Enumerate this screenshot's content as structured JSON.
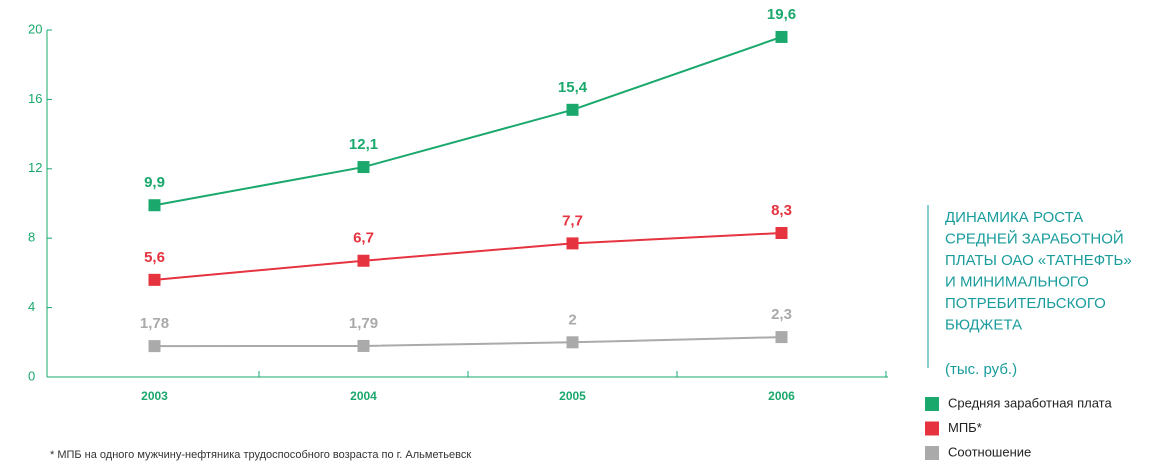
{
  "chart_data": {
    "type": "line",
    "title": [
      "ДИНАМИКА РОСТА",
      "СРЕДНЕЙ ЗАРАБОТНОЙ",
      "ПЛАТЫ ОАО «ТАТНЕФТЬ»",
      "И МИНИМАЛЬНОГО",
      "ПОТРЕБИТЕЛЬСКОГО",
      "БЮДЖЕТА"
    ],
    "subtitle": "(тыс. руб.)",
    "footnote": "* МПБ на одного мужчину-нефтяника трудоспособного возраста по г. Альметьевск",
    "categories": [
      "2003",
      "2004",
      "2005",
      "2006"
    ],
    "series": [
      {
        "name": "Средняя заработная плата",
        "color": "#1aa86c",
        "values": [
          9.9,
          12.1,
          15.4,
          19.6
        ],
        "value_labels": [
          "9,9",
          "12,1",
          "15,4",
          "19,6"
        ]
      },
      {
        "name": "МПБ*",
        "color": "#e5333f",
        "values": [
          5.6,
          6.7,
          7.7,
          8.3
        ],
        "value_labels": [
          "5,6",
          "6,7",
          "7,7",
          "8,3"
        ]
      },
      {
        "name": "Соотношение",
        "color": "#aaaaaa",
        "values": [
          1.78,
          1.79,
          2,
          2.3
        ],
        "value_labels": [
          "1,78",
          "1,79",
          "2",
          "2,3"
        ]
      }
    ],
    "ylim": [
      0,
      20
    ],
    "yticks": [
      0,
      4,
      8,
      12,
      16,
      20
    ]
  }
}
